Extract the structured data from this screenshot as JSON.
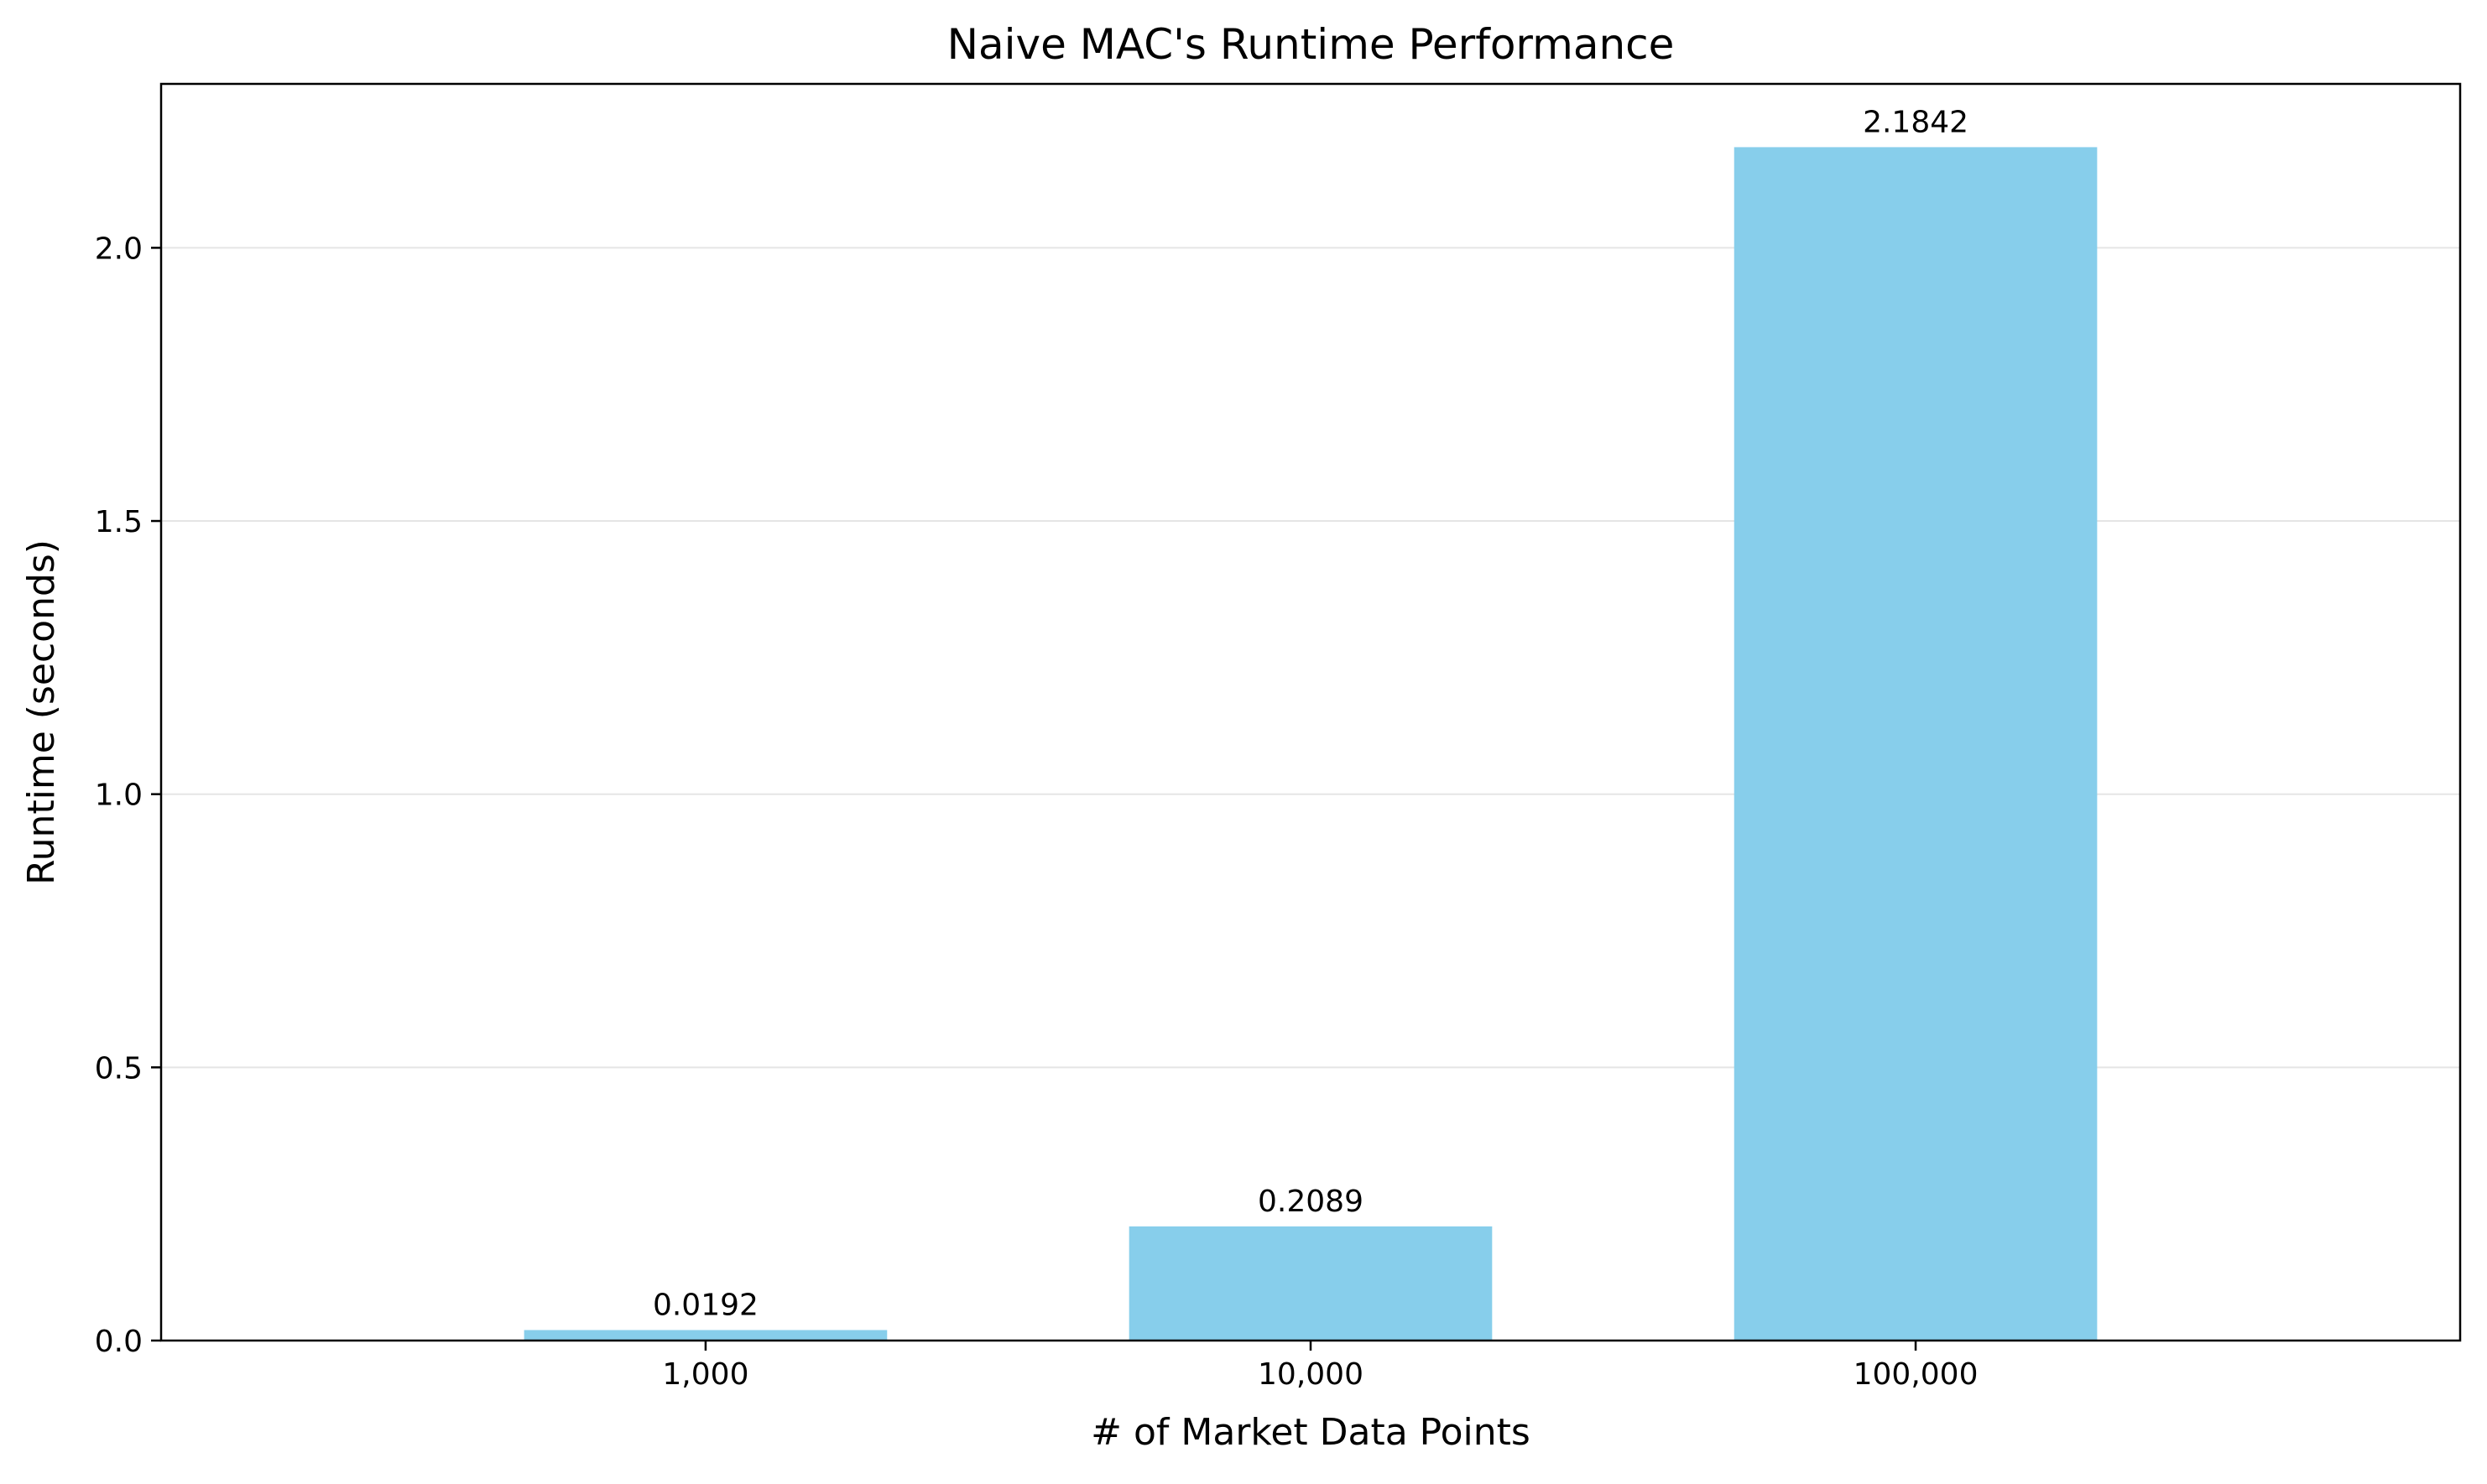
{
  "chart_data": {
    "type": "bar",
    "title": "Naive MAC's Runtime Performance",
    "xlabel": "# of Market Data Points",
    "ylabel": "Runtime (seconds)",
    "categories": [
      "1,000",
      "10,000",
      "100,000"
    ],
    "values": [
      0.0192,
      0.2089,
      2.1842
    ],
    "value_labels": [
      "0.0192",
      "0.2089",
      "2.1842"
    ],
    "ylim": [
      0,
      2.3
    ],
    "yticks": [
      0.0,
      0.5,
      1.0,
      1.5,
      2.0
    ],
    "ytick_labels": [
      "0.0",
      "0.5",
      "1.0",
      "1.5",
      "2.0"
    ],
    "grid": "y-axis horizontal lines",
    "colors": {
      "bar": "#87CEEB",
      "grid": "#e5e5e5",
      "axis": "#000000"
    }
  }
}
